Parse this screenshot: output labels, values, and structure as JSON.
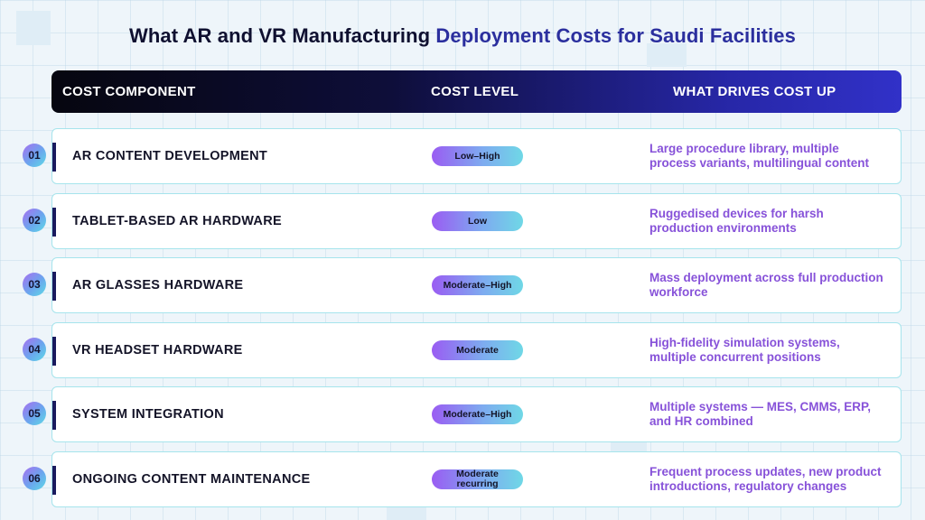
{
  "title": {
    "part1": "What AR and VR Manufacturing ",
    "part2": "Deployment Costs for Saudi Facilities"
  },
  "header": {
    "col1": "COST COMPONENT",
    "col2": "COST LEVEL",
    "col3": "WHAT DRIVES COST UP"
  },
  "colors": {
    "header_dark": "#06060f",
    "header_blue": "#3131c8",
    "driver_text": "#8752d9",
    "row_border": "#a6e4ec"
  },
  "rows": [
    {
      "num": "01",
      "component": "AR CONTENT DEVELOPMENT",
      "level": "Low–High",
      "driver": "Large procedure library, multiple process variants, multilingual content"
    },
    {
      "num": "02",
      "component": "TABLET-BASED AR HARDWARE",
      "level": "Low",
      "driver": "Ruggedised devices for harsh production environments"
    },
    {
      "num": "03",
      "component": "AR GLASSES HARDWARE",
      "level": "Moderate–High",
      "driver": "Mass deployment across full production workforce"
    },
    {
      "num": "04",
      "component": "VR HEADSET HARDWARE",
      "level": "Moderate",
      "driver": "High-fidelity simulation systems, multiple concurrent positions"
    },
    {
      "num": "05",
      "component": "SYSTEM INTEGRATION",
      "level": "Moderate–High",
      "driver": "Multiple systems — MES, CMMS, ERP, and HR combined"
    },
    {
      "num": "06",
      "component": "ONGOING CONTENT MAINTENANCE",
      "level": "Moderate recurring",
      "driver": "Frequent process updates, new product introductions, regulatory changes"
    }
  ]
}
